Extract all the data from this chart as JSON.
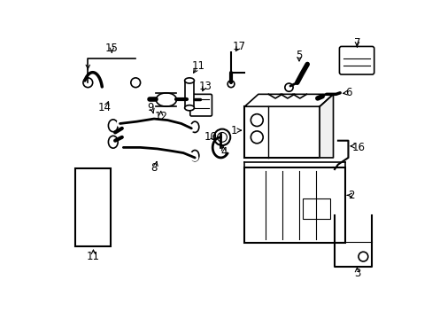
{
  "background_color": "#ffffff",
  "line_color": "#000000",
  "gray_color": "#888888",
  "label_fontsize": 8.5,
  "fig_width": 4.89,
  "fig_height": 3.6,
  "dpi": 100
}
